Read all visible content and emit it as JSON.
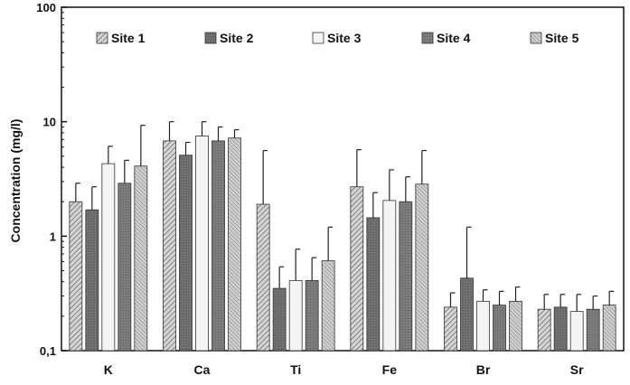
{
  "chart_data": {
    "type": "bar",
    "title": "",
    "xlabel": "",
    "ylabel": "Concentration (mg/l)",
    "yscale": "log",
    "ylim": [
      0.1,
      100
    ],
    "ytick_labels": [
      "0,1",
      "1",
      "10",
      "100"
    ],
    "categories": [
      "K",
      "Ca",
      "Ti",
      "Fe",
      "Br",
      "Sr"
    ],
    "grid": false,
    "legend_position": "top",
    "error_bars": true,
    "series": [
      {
        "name": "Site 1",
        "values": [
          2.0,
          6.8,
          1.9,
          2.7,
          0.24,
          0.23
        ],
        "errors_upper": [
          2.9,
          10.0,
          5.6,
          5.7,
          0.32,
          0.31
        ],
        "pattern": "diagonal-hatch",
        "color": "#9a9a9a"
      },
      {
        "name": "Site 2",
        "values": [
          1.7,
          5.1,
          0.35,
          1.45,
          0.43,
          0.24
        ],
        "errors_upper": [
          2.7,
          6.6,
          0.54,
          2.4,
          1.2,
          0.31
        ],
        "pattern": "solid-dark",
        "color": "#6a6a6a"
      },
      {
        "name": "Site 3",
        "values": [
          4.3,
          7.5,
          0.41,
          2.05,
          0.27,
          0.22
        ],
        "errors_upper": [
          6.1,
          10.0,
          0.77,
          3.8,
          0.34,
          0.31
        ],
        "pattern": "white",
        "color": "#f2f2f2"
      },
      {
        "name": "Site 4",
        "values": [
          2.9,
          6.8,
          0.41,
          2.0,
          0.25,
          0.23
        ],
        "errors_upper": [
          4.6,
          9.0,
          0.65,
          3.3,
          0.33,
          0.3
        ],
        "pattern": "solid-medium",
        "color": "#7e7e7e"
      },
      {
        "name": "Site 5",
        "values": [
          4.1,
          7.2,
          0.61,
          2.85,
          0.27,
          0.25
        ],
        "errors_upper": [
          9.3,
          8.5,
          1.2,
          5.6,
          0.36,
          0.33
        ],
        "pattern": "fine-hatch",
        "color": "#b0b0b0"
      }
    ]
  }
}
